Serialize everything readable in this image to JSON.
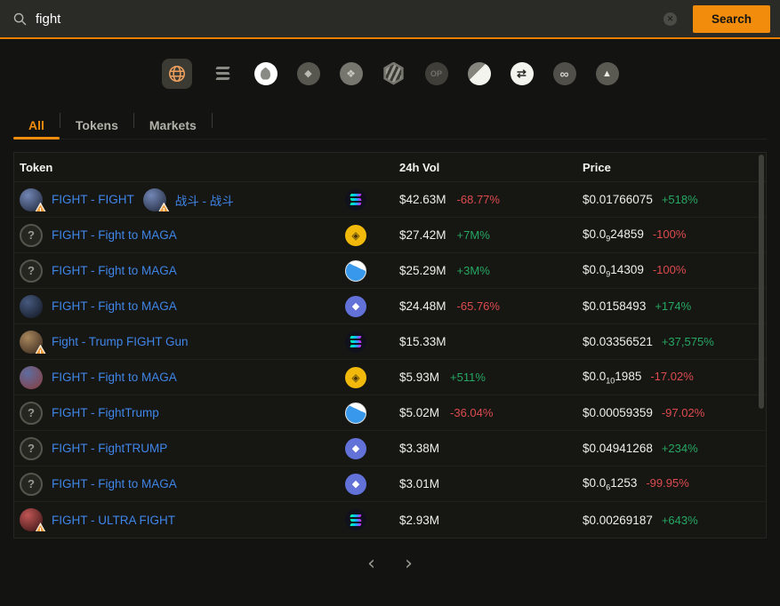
{
  "colors": {
    "accent_orange": "#f18c0d",
    "topbar_border_orange": "#ef7d00",
    "link_blue": "#3f86e8",
    "up_green": "#26a862",
    "down_red": "#dd4b4e",
    "topbar_bg": "#2a2a26",
    "page_bg": "#131311",
    "panel_bg": "#161613",
    "warning_orange": "#f29b38",
    "bnb_yellow": "#f0b90b",
    "sui_blue": "#3898ec",
    "ethereum_purple": "#6272d8",
    "solana_gradient": [
      "#00ffa3",
      "#dc1fff"
    ]
  },
  "search": {
    "value": "fight",
    "button_label": "Search"
  },
  "glyphs": {
    "question_avatar": "?",
    "warning_mark": "!",
    "optimism_label": "OP"
  },
  "networks": [
    {
      "name": "all-networks-globe",
      "selected": true
    },
    {
      "name": "solana",
      "selected": false
    },
    {
      "name": "sui",
      "selected": false
    },
    {
      "name": "ethereum",
      "selected": false
    },
    {
      "name": "bnb",
      "selected": false
    },
    {
      "name": "hexagon-badge",
      "selected": false
    },
    {
      "name": "optimism",
      "label": "OP",
      "selected": false
    },
    {
      "name": "half-moon",
      "selected": false
    },
    {
      "name": "swap-arrows",
      "selected": false
    },
    {
      "name": "infinity",
      "selected": false
    },
    {
      "name": "avalanche",
      "selected": false
    }
  ],
  "tabs": [
    {
      "label": "All",
      "active": true
    },
    {
      "label": "Tokens",
      "active": false
    },
    {
      "label": "Markets",
      "active": false
    }
  ],
  "table": {
    "columns": [
      "Token",
      "24h Vol",
      "Price"
    ],
    "rows": [
      {
        "token": "FIGHT - FIGHT",
        "token_alt": "战斗 - 战斗",
        "avatar": "photo",
        "avatar_colors": [
          "#7286b5",
          "#1c2334"
        ],
        "warning": true,
        "chain": "solana",
        "vol": "$42.63M",
        "vol_change": "-68.77%",
        "vol_dir": "down",
        "price_pre": "$0.01766075",
        "price_sub": "",
        "price_post": "",
        "price_change": "+518%",
        "price_dir": "up"
      },
      {
        "token": "FIGHT - Fight to MAGA",
        "token_alt": "",
        "avatar": "question",
        "avatar_colors": [],
        "warning": false,
        "chain": "bnb",
        "vol": "$27.42M",
        "vol_change": "+7M%",
        "vol_dir": "up",
        "price_pre": "$0.0",
        "price_sub": "9",
        "price_post": "24859",
        "price_change": "-100%",
        "price_dir": "down"
      },
      {
        "token": "FIGHT - Fight to MAGA",
        "token_alt": "",
        "avatar": "question",
        "avatar_colors": [],
        "warning": false,
        "chain": "sui",
        "vol": "$25.29M",
        "vol_change": "+3M%",
        "vol_dir": "up",
        "price_pre": "$0.0",
        "price_sub": "9",
        "price_post": "14309",
        "price_change": "-100%",
        "price_dir": "down"
      },
      {
        "token": "FIGHT - Fight to MAGA",
        "token_alt": "",
        "avatar": "photo",
        "avatar_colors": [
          "#46597e",
          "#10151f"
        ],
        "warning": false,
        "chain": "ethereum",
        "vol": "$24.48M",
        "vol_change": "-65.76%",
        "vol_dir": "down",
        "price_pre": "$0.0158493",
        "price_sub": "",
        "price_post": "",
        "price_change": "+174%",
        "price_dir": "up"
      },
      {
        "token": "Fight - Trump FIGHT Gun",
        "token_alt": "",
        "avatar": "photo",
        "avatar_colors": [
          "#a8875d",
          "#33241a"
        ],
        "warning": true,
        "chain": "solana",
        "vol": "$15.33M",
        "vol_change": "",
        "vol_dir": "",
        "price_pre": "$0.03356521",
        "price_sub": "",
        "price_post": "",
        "price_change": "+37,575%",
        "price_dir": "up"
      },
      {
        "token": "FIGHT - Fight to MAGA",
        "token_alt": "",
        "avatar": "photo",
        "avatar_colors": [
          "#5d6da0",
          "#8a3d3d"
        ],
        "warning": false,
        "chain": "bnb",
        "vol": "$5.93M",
        "vol_change": "+511%",
        "vol_dir": "up",
        "price_pre": "$0.0",
        "price_sub": "10",
        "price_post": "1985",
        "price_change": "-17.02%",
        "price_dir": "down"
      },
      {
        "token": "FIGHT - FightTrump",
        "token_alt": "",
        "avatar": "question",
        "avatar_colors": [],
        "warning": false,
        "chain": "sui",
        "vol": "$5.02M",
        "vol_change": "-36.04%",
        "vol_dir": "down",
        "price_pre": "$0.00059359",
        "price_sub": "",
        "price_post": "",
        "price_change": "-97.02%",
        "price_dir": "down"
      },
      {
        "token": "FIGHT - FightTRUMP",
        "token_alt": "",
        "avatar": "question",
        "avatar_colors": [],
        "warning": false,
        "chain": "ethereum",
        "vol": "$3.38M",
        "vol_change": "",
        "vol_dir": "",
        "price_pre": "$0.04941268",
        "price_sub": "",
        "price_post": "",
        "price_change": "+234%",
        "price_dir": "up"
      },
      {
        "token": "FIGHT - Fight to MAGA",
        "token_alt": "",
        "avatar": "question",
        "avatar_colors": [],
        "warning": false,
        "chain": "ethereum",
        "vol": "$3.01M",
        "vol_change": "",
        "vol_dir": "",
        "price_pre": "$0.0",
        "price_sub": "6",
        "price_post": "1253",
        "price_change": "-99.95%",
        "price_dir": "down"
      },
      {
        "token": "FIGHT - ULTRA FIGHT",
        "token_alt": "",
        "avatar": "photo",
        "avatar_colors": [
          "#c05555",
          "#341111"
        ],
        "warning": true,
        "chain": "solana",
        "vol": "$2.93M",
        "vol_change": "",
        "vol_dir": "",
        "price_pre": "$0.00269187",
        "price_sub": "",
        "price_post": "",
        "price_change": "+643%",
        "price_dir": "up"
      }
    ]
  },
  "pagination": {
    "prev_label": "‹",
    "next_label": "›"
  }
}
